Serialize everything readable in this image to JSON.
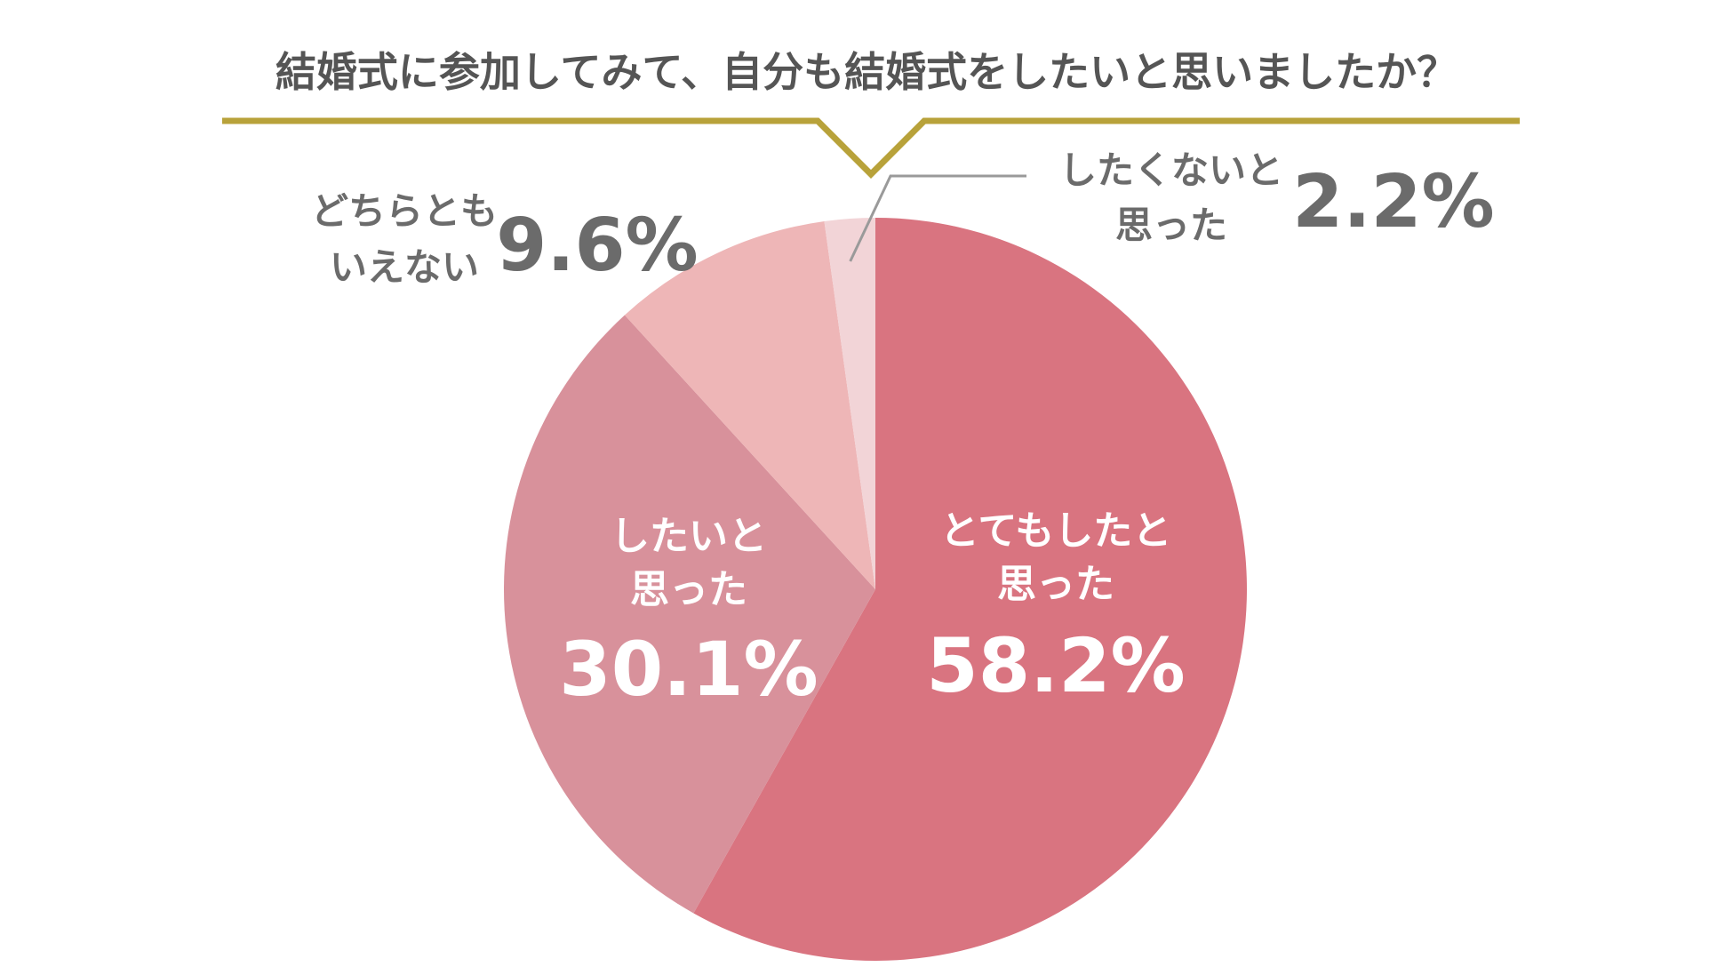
{
  "chart_data": {
    "type": "pie",
    "title": "結婚式に参加してみて、自分も結婚式をしたいと思いましたか？",
    "slices": [
      {
        "label_lines": [
          "とてもしたと",
          "思った"
        ],
        "value": 58.2,
        "display": "58.2%",
        "color": "#d97480"
      },
      {
        "label_lines": [
          "したいと",
          "思った"
        ],
        "value": 30.1,
        "display": "30.1%",
        "color": "#d8919b"
      },
      {
        "label_lines": [
          "どちらとも",
          "いえない"
        ],
        "value": 9.6,
        "display": "9.6%",
        "color": "#eeb6b7"
      },
      {
        "label_lines": [
          "したくないと",
          "思った"
        ],
        "value": 2.2,
        "display": "2.2%",
        "color": "#f2d4d7"
      }
    ],
    "accent_color": "#b8a23a"
  }
}
